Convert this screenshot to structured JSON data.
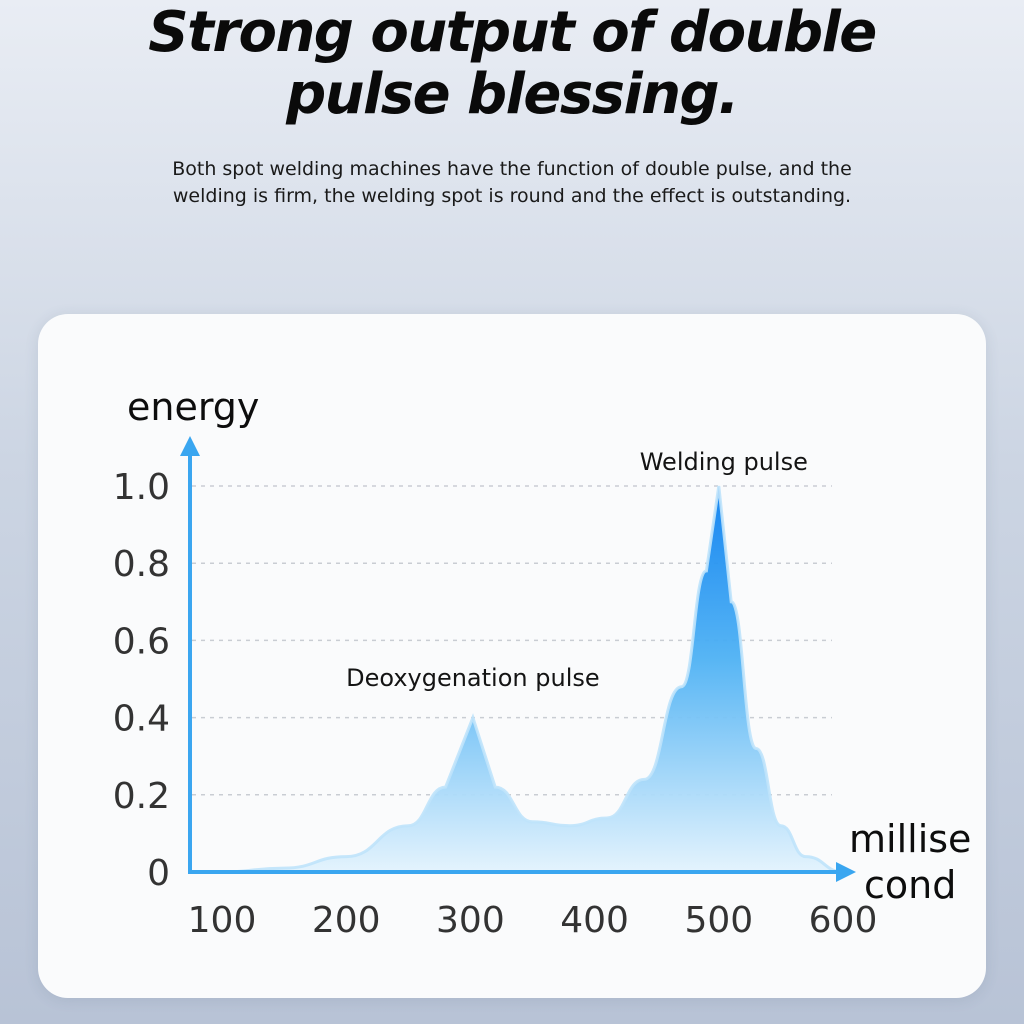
{
  "header": {
    "title_line1": "Strong output of double",
    "title_line2": "pulse blessing.",
    "subtitle": "Both spot welding machines have the function of double pulse, and the welding is firm, the welding spot is round and the effect is outstanding."
  },
  "chart_data": {
    "type": "area",
    "ylabel": "energy",
    "xlabel_line1": "millise",
    "xlabel_line2": "cond",
    "x_ticks": [
      "100",
      "200",
      "300",
      "400",
      "500",
      "600"
    ],
    "y_ticks": [
      "0",
      "0.2",
      "0.4",
      "0.6",
      "0.8",
      "1.0"
    ],
    "xlim": [
      100,
      600
    ],
    "ylim": [
      0,
      1.0
    ],
    "grid": true,
    "annotations": [
      {
        "text": "Deoxygenation pulse",
        "x": 302,
        "y": 0.42
      },
      {
        "text": "Welding pulse",
        "x": 500,
        "y": 1.0
      }
    ],
    "series": [
      {
        "x": [
          100,
          150,
          200,
          250,
          280,
          302,
          320,
          350,
          380,
          410,
          440,
          470,
          490,
          500,
          510,
          530,
          550,
          570,
          600
        ],
        "values": [
          0,
          0.01,
          0.04,
          0.12,
          0.22,
          0.4,
          0.22,
          0.13,
          0.12,
          0.14,
          0.24,
          0.48,
          0.78,
          1.0,
          0.7,
          0.32,
          0.12,
          0.04,
          0
        ]
      }
    ],
    "colors": {
      "axis": "#3aa6f0",
      "fill_top": "#0a7ff0",
      "fill_bottom": "#d8eefc",
      "grid": "#c9cdd3"
    }
  }
}
